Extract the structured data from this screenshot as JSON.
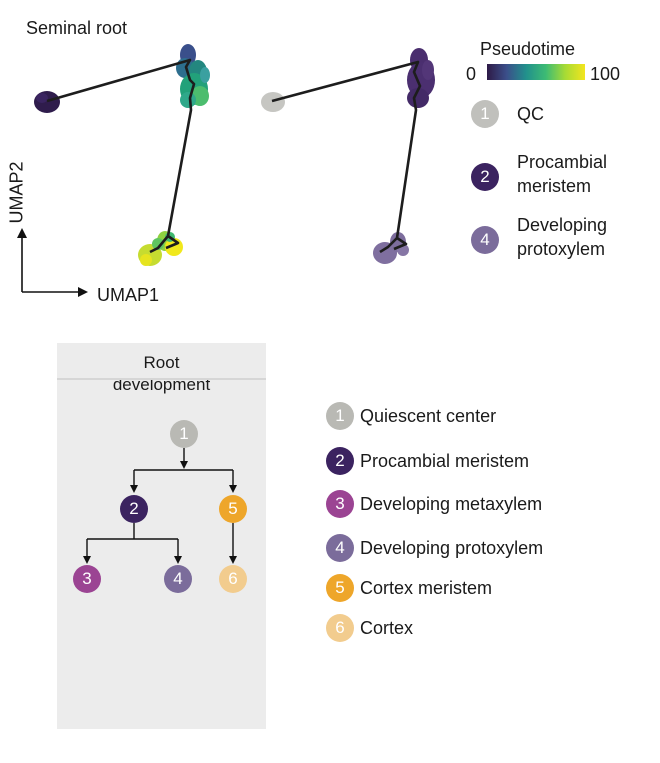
{
  "umap": {
    "title": "Seminal root",
    "x_axis_label": "UMAP1",
    "y_axis_label": "UMAP2"
  },
  "pseudotime_legend": {
    "title": "Pseudotime",
    "min_label": "0",
    "max_label": "100",
    "colorscale": [
      "#2e1a47",
      "#3b4f8a",
      "#21918c",
      "#3dbb74",
      "#a8db34",
      "#f3e51e"
    ]
  },
  "umap_legend": [
    {
      "number": "1",
      "label_lines": [
        "QC"
      ],
      "color": "#c0c0bc"
    },
    {
      "number": "2",
      "label_lines": [
        "Procambial",
        "meristem"
      ],
      "color": "#3b2360"
    },
    {
      "number": "4",
      "label_lines": [
        "Developing",
        "protoxylem"
      ],
      "color": "#7b6c9b"
    }
  ],
  "development": {
    "title_lines": [
      "Root",
      "development"
    ],
    "nodes": [
      {
        "number": "1",
        "color": "#b9b9b4"
      },
      {
        "number": "2",
        "color": "#3b2360"
      },
      {
        "number": "5",
        "color": "#eea62a"
      },
      {
        "number": "3",
        "color": "#9b4493"
      },
      {
        "number": "4",
        "color": "#7b6c9b"
      },
      {
        "number": "6",
        "color": "#f2cc8e"
      }
    ]
  },
  "cell_type_legend": [
    {
      "number": "1",
      "label": "Quiescent center",
      "color": "#b9b9b4"
    },
    {
      "number": "2",
      "label": "Procambial meristem",
      "color": "#3b2360"
    },
    {
      "number": "3",
      "label": "Developing metaxylem",
      "color": "#9b4493"
    },
    {
      "number": "4",
      "label": "Developing protoxylem",
      "color": "#7b6c9b"
    },
    {
      "number": "5",
      "label": "Cortex meristem",
      "color": "#eea62a"
    },
    {
      "number": "6",
      "label": "Cortex",
      "color": "#f2cc8e"
    }
  ]
}
